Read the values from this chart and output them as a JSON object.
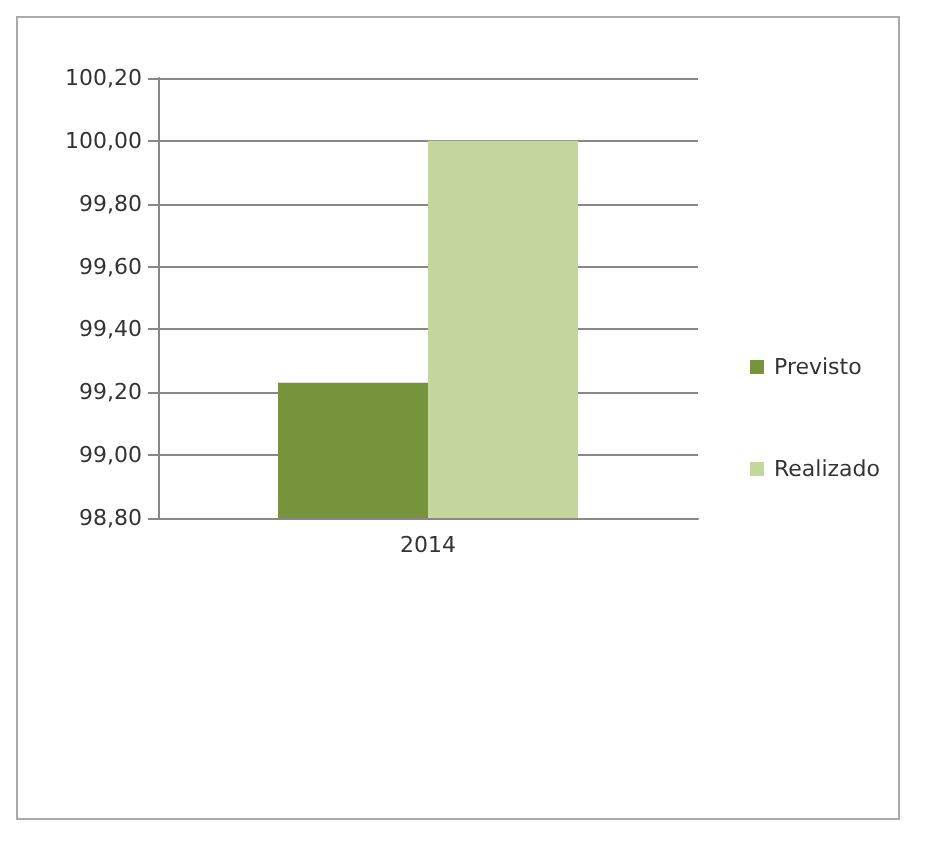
{
  "chart_data": {
    "type": "bar",
    "categories": [
      "2014"
    ],
    "series": [
      {
        "name": "Previsto",
        "color": "#77933c",
        "values": [
          99.23
        ]
      },
      {
        "name": "Realizado",
        "color": "#c3d69b",
        "values": [
          100.0
        ]
      }
    ],
    "ylim": [
      98.8,
      100.2
    ],
    "yticks": [
      {
        "value": 98.8,
        "label": "98,80"
      },
      {
        "value": 99.0,
        "label": "99,00"
      },
      {
        "value": 99.2,
        "label": "99,20"
      },
      {
        "value": 99.4,
        "label": "99,40"
      },
      {
        "value": 99.6,
        "label": "99,60"
      },
      {
        "value": 99.8,
        "label": "99,80"
      },
      {
        "value": 100.0,
        "label": "100,00"
      },
      {
        "value": 100.2,
        "label": "100,20"
      }
    ],
    "grid": "y",
    "legend": "right"
  }
}
